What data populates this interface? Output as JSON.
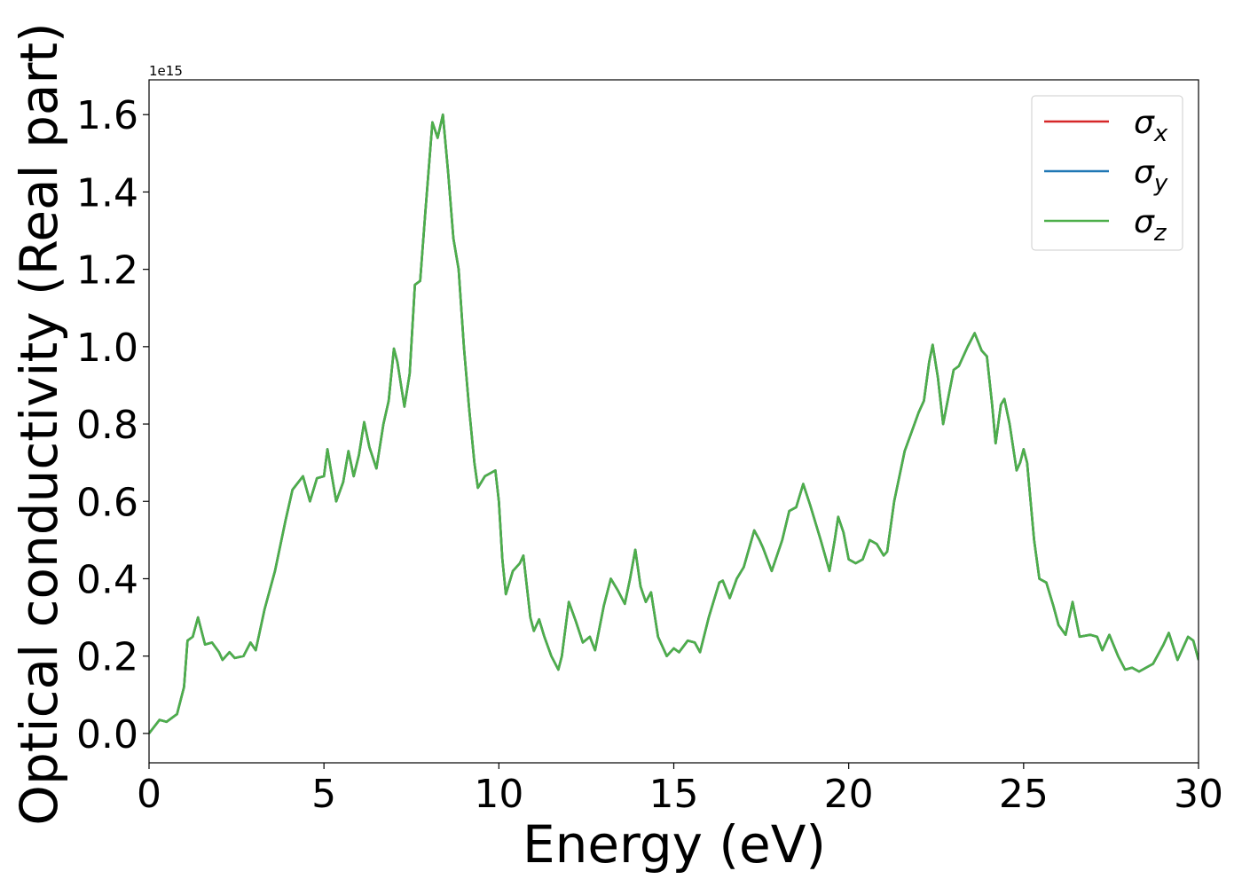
{
  "chart_data": {
    "type": "line",
    "xlabel": "Energy (eV)",
    "ylabel": "Optical conductivity (Real part)",
    "y_offset_label": "1e15",
    "xlim": [
      0,
      30
    ],
    "ylim": [
      -0.076,
      1.69
    ],
    "xticks": [
      0,
      5,
      10,
      15,
      20,
      25,
      30
    ],
    "yticks": [
      {
        "value": 0,
        "label": "0.0"
      },
      0.2,
      0.4,
      0.6,
      0.8,
      {
        "value": 1,
        "label": "1.0"
      },
      1.2,
      1.4,
      1.6
    ],
    "grid": false,
    "legend": "upper right",
    "x": [
      0,
      0.3,
      0.5,
      0.8,
      1.0,
      1.1,
      1.25,
      1.4,
      1.6,
      1.8,
      2.0,
      2.1,
      2.3,
      2.45,
      2.7,
      2.9,
      3.05,
      3.3,
      3.6,
      3.9,
      4.1,
      4.4,
      4.6,
      4.8,
      5.0,
      5.1,
      5.2,
      5.35,
      5.55,
      5.7,
      5.85,
      6.0,
      6.15,
      6.3,
      6.5,
      6.7,
      6.85,
      7.0,
      7.1,
      7.3,
      7.45,
      7.6,
      7.75,
      7.9,
      8.1,
      8.25,
      8.4,
      8.55,
      8.7,
      8.85,
      9.0,
      9.15,
      9.3,
      9.4,
      9.6,
      9.9,
      10.0,
      10.1,
      10.2,
      10.4,
      10.6,
      10.7,
      10.9,
      11.0,
      11.15,
      11.3,
      11.5,
      11.7,
      11.8,
      12.0,
      12.2,
      12.4,
      12.6,
      12.75,
      13.0,
      13.2,
      13.4,
      13.6,
      13.75,
      13.9,
      14.05,
      14.2,
      14.35,
      14.55,
      14.8,
      15.0,
      15.15,
      15.4,
      15.6,
      15.75,
      16.0,
      16.3,
      16.4,
      16.6,
      16.8,
      17.0,
      17.3,
      17.45,
      17.55,
      17.8,
      18.1,
      18.3,
      18.5,
      18.7,
      18.9,
      19.2,
      19.45,
      19.6,
      19.7,
      19.85,
      20.0,
      20.2,
      20.4,
      20.6,
      20.8,
      21.0,
      21.1,
      21.3,
      21.6,
      21.8,
      22.0,
      22.15,
      22.3,
      22.4,
      22.55,
      22.7,
      22.85,
      23.0,
      23.15,
      23.4,
      23.6,
      23.8,
      23.95,
      24.1,
      24.2,
      24.35,
      24.45,
      24.6,
      24.8,
      24.9,
      25.0,
      25.1,
      25.3,
      25.45,
      25.65,
      25.85,
      26.0,
      26.2,
      26.4,
      26.6,
      26.9,
      27.1,
      27.25,
      27.45,
      27.7,
      27.9,
      28.1,
      28.3,
      28.7,
      29.0,
      29.15,
      29.4,
      29.7,
      29.85,
      30.0
    ],
    "series": [
      {
        "name": "σx",
        "color": "#d62728",
        "values": [
          0.0,
          0.035,
          0.03,
          0.05,
          0.12,
          0.24,
          0.25,
          0.3,
          0.23,
          0.235,
          0.21,
          0.19,
          0.21,
          0.195,
          0.2,
          0.235,
          0.215,
          0.32,
          0.42,
          0.55,
          0.63,
          0.665,
          0.6,
          0.66,
          0.665,
          0.735,
          0.68,
          0.6,
          0.65,
          0.73,
          0.665,
          0.72,
          0.805,
          0.74,
          0.685,
          0.8,
          0.86,
          0.995,
          0.96,
          0.845,
          0.93,
          1.16,
          1.17,
          1.35,
          1.58,
          1.54,
          1.6,
          1.45,
          1.28,
          1.2,
          1.0,
          0.84,
          0.7,
          0.635,
          0.665,
          0.68,
          0.6,
          0.45,
          0.36,
          0.42,
          0.44,
          0.46,
          0.3,
          0.265,
          0.295,
          0.25,
          0.2,
          0.165,
          0.2,
          0.34,
          0.29,
          0.235,
          0.25,
          0.215,
          0.33,
          0.4,
          0.37,
          0.335,
          0.4,
          0.475,
          0.38,
          0.34,
          0.365,
          0.25,
          0.2,
          0.22,
          0.21,
          0.24,
          0.235,
          0.21,
          0.3,
          0.39,
          0.395,
          0.35,
          0.4,
          0.43,
          0.525,
          0.5,
          0.48,
          0.42,
          0.5,
          0.575,
          0.585,
          0.645,
          0.59,
          0.5,
          0.42,
          0.5,
          0.56,
          0.52,
          0.45,
          0.44,
          0.45,
          0.5,
          0.49,
          0.46,
          0.47,
          0.6,
          0.73,
          0.78,
          0.83,
          0.86,
          0.96,
          1.005,
          0.92,
          0.8,
          0.87,
          0.94,
          0.95,
          1.0,
          1.035,
          0.99,
          0.975,
          0.85,
          0.75,
          0.85,
          0.865,
          0.8,
          0.68,
          0.7,
          0.735,
          0.7,
          0.5,
          0.4,
          0.39,
          0.33,
          0.28,
          0.255,
          0.34,
          0.25,
          0.255,
          0.25,
          0.215,
          0.255,
          0.2,
          0.165,
          0.17,
          0.16,
          0.18,
          0.23,
          0.26,
          0.19,
          0.25,
          0.24,
          0.19
        ]
      },
      {
        "name": "σy",
        "color": "#1f77b4",
        "values": [
          0.0,
          0.035,
          0.03,
          0.05,
          0.12,
          0.24,
          0.25,
          0.3,
          0.23,
          0.235,
          0.21,
          0.19,
          0.21,
          0.195,
          0.2,
          0.235,
          0.215,
          0.32,
          0.42,
          0.55,
          0.63,
          0.665,
          0.6,
          0.66,
          0.665,
          0.735,
          0.68,
          0.6,
          0.65,
          0.73,
          0.665,
          0.72,
          0.805,
          0.74,
          0.685,
          0.8,
          0.86,
          0.995,
          0.96,
          0.845,
          0.93,
          1.16,
          1.17,
          1.35,
          1.58,
          1.54,
          1.6,
          1.45,
          1.28,
          1.2,
          1.0,
          0.84,
          0.7,
          0.635,
          0.665,
          0.68,
          0.6,
          0.45,
          0.36,
          0.42,
          0.44,
          0.46,
          0.3,
          0.265,
          0.295,
          0.25,
          0.2,
          0.165,
          0.2,
          0.34,
          0.29,
          0.235,
          0.25,
          0.215,
          0.33,
          0.4,
          0.37,
          0.335,
          0.4,
          0.475,
          0.38,
          0.34,
          0.365,
          0.25,
          0.2,
          0.22,
          0.21,
          0.24,
          0.235,
          0.21,
          0.3,
          0.39,
          0.395,
          0.35,
          0.4,
          0.43,
          0.525,
          0.5,
          0.48,
          0.42,
          0.5,
          0.575,
          0.585,
          0.645,
          0.59,
          0.5,
          0.42,
          0.5,
          0.56,
          0.52,
          0.45,
          0.44,
          0.45,
          0.5,
          0.49,
          0.46,
          0.47,
          0.6,
          0.73,
          0.78,
          0.83,
          0.86,
          0.96,
          1.005,
          0.92,
          0.8,
          0.87,
          0.94,
          0.95,
          1.0,
          1.035,
          0.99,
          0.975,
          0.85,
          0.75,
          0.85,
          0.865,
          0.8,
          0.68,
          0.7,
          0.735,
          0.7,
          0.5,
          0.4,
          0.39,
          0.33,
          0.28,
          0.255,
          0.34,
          0.25,
          0.255,
          0.25,
          0.215,
          0.255,
          0.2,
          0.165,
          0.17,
          0.16,
          0.18,
          0.23,
          0.26,
          0.19,
          0.25,
          0.24,
          0.19
        ]
      },
      {
        "name": "σz",
        "color": "#4daf4a",
        "values": [
          0.0,
          0.035,
          0.03,
          0.05,
          0.12,
          0.24,
          0.25,
          0.3,
          0.23,
          0.235,
          0.21,
          0.19,
          0.21,
          0.195,
          0.2,
          0.235,
          0.215,
          0.32,
          0.42,
          0.55,
          0.63,
          0.665,
          0.6,
          0.66,
          0.665,
          0.735,
          0.68,
          0.6,
          0.65,
          0.73,
          0.665,
          0.72,
          0.805,
          0.74,
          0.685,
          0.8,
          0.86,
          0.995,
          0.96,
          0.845,
          0.93,
          1.16,
          1.17,
          1.35,
          1.58,
          1.54,
          1.6,
          1.45,
          1.28,
          1.2,
          1.0,
          0.84,
          0.7,
          0.635,
          0.665,
          0.68,
          0.6,
          0.45,
          0.36,
          0.42,
          0.44,
          0.46,
          0.3,
          0.265,
          0.295,
          0.25,
          0.2,
          0.165,
          0.2,
          0.34,
          0.29,
          0.235,
          0.25,
          0.215,
          0.33,
          0.4,
          0.37,
          0.335,
          0.4,
          0.475,
          0.38,
          0.34,
          0.365,
          0.25,
          0.2,
          0.22,
          0.21,
          0.24,
          0.235,
          0.21,
          0.3,
          0.39,
          0.395,
          0.35,
          0.4,
          0.43,
          0.525,
          0.5,
          0.48,
          0.42,
          0.5,
          0.575,
          0.585,
          0.645,
          0.59,
          0.5,
          0.42,
          0.5,
          0.56,
          0.52,
          0.45,
          0.44,
          0.45,
          0.5,
          0.49,
          0.46,
          0.47,
          0.6,
          0.73,
          0.78,
          0.83,
          0.86,
          0.96,
          1.005,
          0.92,
          0.8,
          0.87,
          0.94,
          0.95,
          1.0,
          1.035,
          0.99,
          0.975,
          0.85,
          0.75,
          0.85,
          0.865,
          0.8,
          0.68,
          0.7,
          0.735,
          0.7,
          0.5,
          0.4,
          0.39,
          0.33,
          0.28,
          0.255,
          0.34,
          0.25,
          0.255,
          0.25,
          0.215,
          0.255,
          0.2,
          0.165,
          0.17,
          0.16,
          0.18,
          0.23,
          0.26,
          0.19,
          0.25,
          0.24,
          0.19
        ]
      }
    ]
  }
}
